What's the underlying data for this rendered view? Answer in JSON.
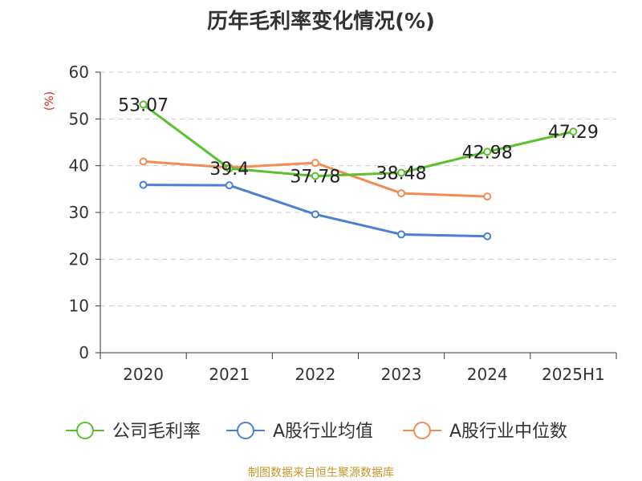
{
  "chart_data": {
    "type": "line",
    "title": "历年毛利率变化情况(%)",
    "ylabel": "(%)",
    "xlabel": "",
    "categories": [
      "2020",
      "2021",
      "2022",
      "2023",
      "2024",
      "2025H1"
    ],
    "ylim": [
      0,
      60
    ],
    "yticks": [
      0,
      10,
      20,
      30,
      40,
      50,
      60
    ],
    "grid": true,
    "legend_position": "bottom",
    "series": [
      {
        "name": "公司毛利率",
        "color": "#5bbf2e",
        "labels_shown": true,
        "values": [
          53.07,
          39.4,
          37.78,
          38.48,
          42.98,
          47.29
        ]
      },
      {
        "name": "A股行业均值",
        "color": "#4a7fd6",
        "labels_shown": false,
        "values": [
          35.9,
          35.8,
          29.6,
          25.3,
          24.9,
          null
        ]
      },
      {
        "name": "A股行业中位数",
        "color": "#f28c55",
        "labels_shown": false,
        "values": [
          40.9,
          39.6,
          40.6,
          34.1,
          33.4,
          null
        ]
      }
    ]
  },
  "footer": {
    "source": "制图数据来自恒生聚源数据库"
  }
}
